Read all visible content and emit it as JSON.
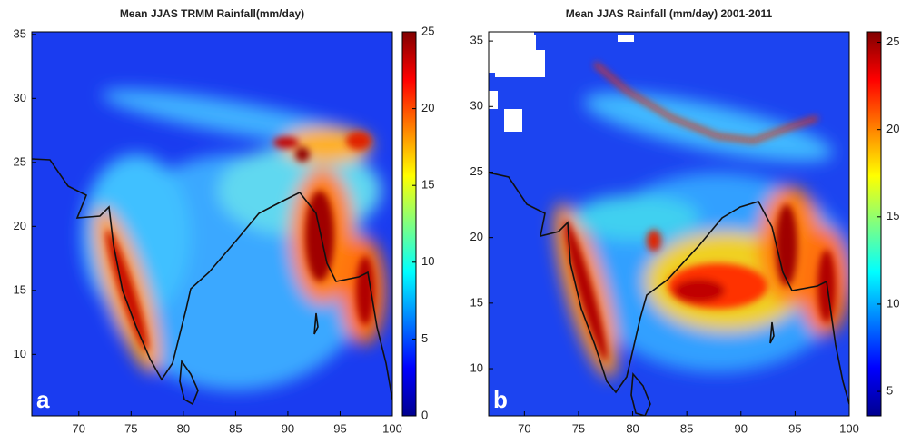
{
  "chart_data": [
    {
      "type": "heatmap",
      "title": "Mean JJAS TRMM Rainfall(mm/day)",
      "panel_label": "a",
      "colormap": "jet",
      "xlim": [
        65.5,
        100
      ],
      "xticks": [
        70,
        75,
        80,
        85,
        90,
        95,
        100
      ],
      "ylim": [
        5.2,
        35.2
      ],
      "yticks": [
        10,
        15,
        20,
        25,
        30,
        35
      ],
      "clim": [
        0,
        25
      ],
      "cticks": [
        0,
        5,
        10,
        15,
        20,
        25
      ]
    },
    {
      "type": "heatmap",
      "title": "Mean JJAS Rainfall (mm/day) 2001-2011",
      "panel_label": "b",
      "colormap": "jet",
      "xlim": [
        66.7,
        100
      ],
      "xticks": [
        70,
        75,
        80,
        85,
        90,
        95,
        100
      ],
      "ylim": [
        6.4,
        35.7
      ],
      "yticks": [
        10,
        15,
        20,
        25,
        30,
        35
      ],
      "clim": [
        3.6,
        25.6
      ],
      "cticks": [
        5,
        10,
        15,
        20,
        25
      ]
    }
  ]
}
